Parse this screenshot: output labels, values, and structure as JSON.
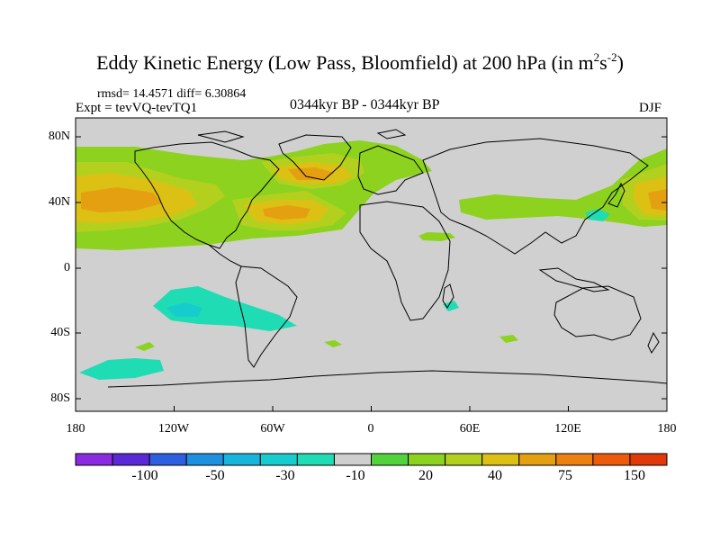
{
  "title": {
    "main": "Eddy Kinetic Energy (Low Pass, Bloomfield) at 200 hPa (in m",
    "sup1": "2",
    "mid": "s",
    "sup2": "-2",
    "close": ")"
  },
  "stats_line": "rmsd= 14.4571  diff= 6.30864",
  "experiment": "Expt = tevVQ-tevTQ1",
  "period": "0344kyr BP - 0344kyr BP",
  "season": "DJF",
  "map": {
    "ocean_land_color": "#d0d0d0",
    "lat_ticks": [
      "80N",
      "40N",
      "0",
      "40S",
      "80S"
    ],
    "lon_ticks": [
      "180",
      "120W",
      "60W",
      "0",
      "60E",
      "120E",
      "180"
    ]
  },
  "colorbar": {
    "colors": [
      "#8a2be2",
      "#5a28d6",
      "#2e5fe0",
      "#1e90e0",
      "#18b4dc",
      "#16cccc",
      "#20dcb4",
      "#cfcfcf",
      "#52d23c",
      "#8cd21e",
      "#b4d01e",
      "#dcc014",
      "#e4a010",
      "#ec8010",
      "#ec5a0c",
      "#e03a0a"
    ],
    "labels": [
      "-100",
      "-50",
      "-30",
      "-10",
      "20",
      "40",
      "75",
      "150"
    ]
  }
}
